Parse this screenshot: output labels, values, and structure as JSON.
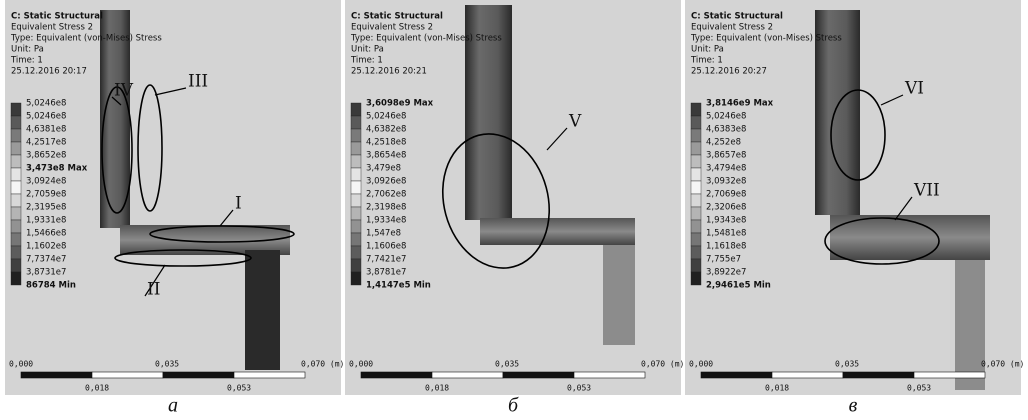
{
  "panels": [
    {
      "header": [
        "C: Static Structural",
        "Equivalent Stress 2",
        "Type: Equivalent (von-Mises) Stress",
        "Unit: Pa",
        "Time: 1",
        "25.12.2016 20:17"
      ],
      "legend": [
        "5,0246e8",
        "5,0246e8",
        "4,6381e8",
        "4,2517e8",
        "3,8652e8",
        "3,473e8 Max",
        "3,0924e8",
        "2,7059e8",
        "2,3195e8",
        "1,9331e8",
        "1,5466e8",
        "1,1602e8",
        "7,7374e7",
        "3,8731e7",
        "86784 Min"
      ],
      "scale": {
        "top": [
          "0,000",
          "0,035",
          "0,070 (m)"
        ],
        "bottom": [
          "0,018",
          "0,053"
        ]
      },
      "annotations": [
        "IV",
        "III",
        "I",
        "II"
      ],
      "caption": "а"
    },
    {
      "header": [
        "C: Static Structural",
        "Equivalent Stress 2",
        "Type: Equivalent (von-Mises) Stress",
        "Unit: Pa",
        "Time: 1",
        "25.12.2016 20:21"
      ],
      "legend": [
        "3,6098e9 Max",
        "5,0246e8",
        "4,6382e8",
        "4,2518e8",
        "3,8654e8",
        "3,479e8",
        "3,0926e8",
        "2,7062e8",
        "2,3198e8",
        "1,9334e8",
        "1,547e8",
        "1,1606e8",
        "7,7421e7",
        "3,8781e7",
        "1,4147e5 Min"
      ],
      "scale": {
        "top": [
          "0,000",
          "0,035",
          "0,070 (m)"
        ],
        "bottom": [
          "0,018",
          "0,053"
        ]
      },
      "annotations": [
        "V"
      ],
      "caption": "б"
    },
    {
      "header": [
        "C: Static Structural",
        "Equivalent Stress 2",
        "Type: Equivalent (von-Mises) Stress",
        "Unit: Pa",
        "Time: 1",
        "25.12.2016 20:27"
      ],
      "legend": [
        "3,8146e9 Max",
        "5,0246e8",
        "4,6383e8",
        "4,252e8",
        "3,8657e8",
        "3,4794e8",
        "3,0932e8",
        "2,7069e8",
        "2,3206e8",
        "1,9343e8",
        "1,5481e8",
        "1,1618e8",
        "7,755e7",
        "3,8922e7",
        "2,9461e5 Min"
      ],
      "scale": {
        "top": [
          "0,000",
          "0,035",
          "0,070 (m)"
        ],
        "bottom": [
          "0,018",
          "0,053"
        ]
      },
      "annotations": [
        "VI",
        "VII"
      ],
      "caption": "в"
    }
  ]
}
